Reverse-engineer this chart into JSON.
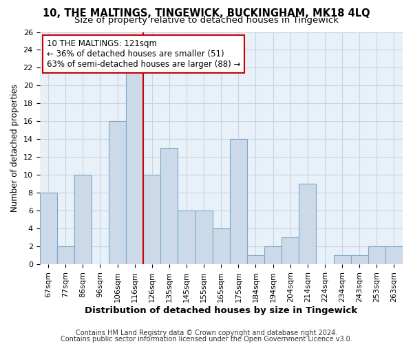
{
  "title": "10, THE MALTINGS, TINGEWICK, BUCKINGHAM, MK18 4LQ",
  "subtitle": "Size of property relative to detached houses in Tingewick",
  "xlabel": "Distribution of detached houses by size in Tingewick",
  "ylabel": "Number of detached properties",
  "bar_labels": [
    "67sqm",
    "77sqm",
    "86sqm",
    "96sqm",
    "106sqm",
    "116sqm",
    "126sqm",
    "135sqm",
    "145sqm",
    "155sqm",
    "165sqm",
    "175sqm",
    "184sqm",
    "194sqm",
    "204sqm",
    "214sqm",
    "224sqm",
    "234sqm",
    "243sqm",
    "253sqm",
    "263sqm"
  ],
  "bar_values": [
    8,
    2,
    10,
    0,
    16,
    22,
    10,
    13,
    6,
    6,
    4,
    14,
    1,
    2,
    3,
    9,
    0,
    1,
    1,
    2,
    2
  ],
  "bar_color": "#ccd9e8",
  "bar_edge_color": "#7aa8cc",
  "vline_color": "#cc0000",
  "annotation_text": "10 THE MALTINGS: 121sqm\n← 36% of detached houses are smaller (51)\n63% of semi-detached houses are larger (88) →",
  "annotation_box_edgecolor": "#cc0000",
  "annotation_box_facecolor": "#ffffff",
  "ylim": [
    0,
    26
  ],
  "yticks": [
    0,
    2,
    4,
    6,
    8,
    10,
    12,
    14,
    16,
    18,
    20,
    22,
    24,
    26
  ],
  "grid_color": "#c8d4e4",
  "bg_color": "#e8f0f8",
  "footer_line1": "Contains HM Land Registry data © Crown copyright and database right 2024.",
  "footer_line2": "Contains public sector information licensed under the Open Government Licence v3.0.",
  "title_fontsize": 10.5,
  "subtitle_fontsize": 9.5,
  "xlabel_fontsize": 9.5,
  "ylabel_fontsize": 8.5,
  "tick_fontsize": 8,
  "annotation_fontsize": 8.5,
  "footer_fontsize": 7
}
